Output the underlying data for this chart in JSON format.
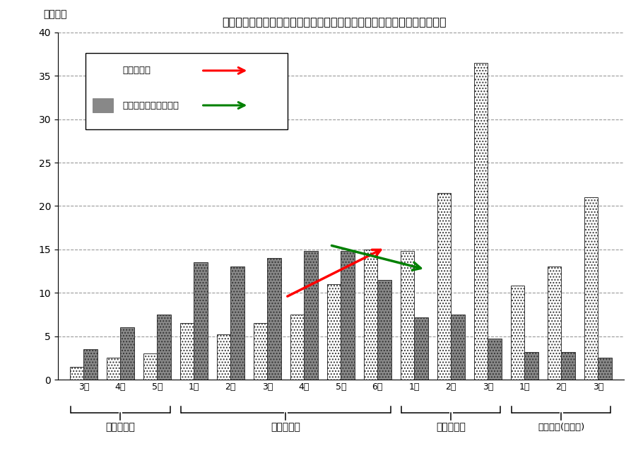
{
  "title": "図５－１　学年別にみた補助学習費とその他の学校外活動費（公立学校）",
  "ylabel": "（万円）",
  "ylim": [
    0,
    40
  ],
  "yticks": [
    0,
    5,
    10,
    15,
    20,
    25,
    30,
    35,
    40
  ],
  "bar_labels": [
    "3歳",
    "4歳",
    "5歳",
    "1年",
    "2年",
    "3年",
    "4年",
    "5年",
    "6年",
    "1年",
    "2年",
    "3年",
    "1年",
    "2年",
    "3年"
  ],
  "group_labels": [
    "幼　稚　園",
    "小　学　校",
    "中　学　校",
    "高等学校(全日制)"
  ],
  "series1": [
    1.5,
    2.5,
    3.0,
    6.5,
    5.2,
    6.5,
    7.5,
    11.0,
    15.0,
    14.8,
    21.5,
    36.5,
    10.8,
    13.0,
    21.0
  ],
  "series2": [
    3.5,
    6.0,
    7.5,
    13.5,
    13.0,
    14.0,
    14.8,
    14.8,
    11.5,
    7.2,
    7.5,
    4.7,
    3.2,
    3.2,
    2.5
  ],
  "color1": "#ffffff",
  "color2": "#888888",
  "hatch1": "....",
  "hatch2": "....",
  "edgecolor1": "#333333",
  "edgecolor2": "#333333",
  "legend_label1": "補助学習費",
  "legend_label2": "その他の学校外活動費",
  "bar_width": 0.38,
  "background_color": "#ffffff",
  "grid_color": "#999999"
}
